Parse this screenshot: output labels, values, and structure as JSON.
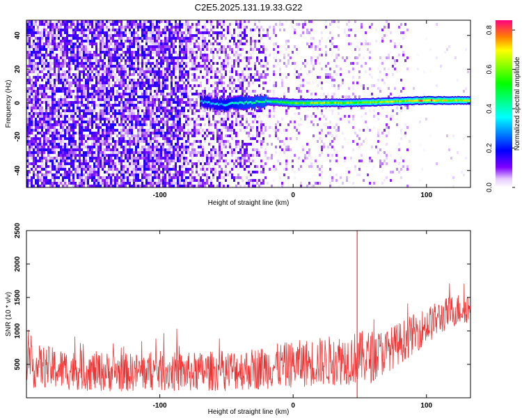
{
  "title": "C2E5.2025.131.19.33.G22",
  "chart_data": [
    {
      "type": "heatmap",
      "title": "",
      "xlabel": "Height of straight line (km)",
      "ylabel": "Frequency (Hz)",
      "xlim": [
        -200,
        133
      ],
      "ylim": [
        -50,
        49
      ],
      "xticks": [
        -100,
        0,
        100
      ],
      "yticks": [
        -40,
        -20,
        0,
        20,
        40
      ],
      "colorbar": {
        "label": "Normalized spectral amplitude",
        "range": [
          0,
          0.85
        ],
        "ticks": [
          0.0,
          0.2,
          0.4,
          0.6,
          0.8
        ],
        "colormap": "rainbow (white-violet-blue-cyan-green-yellow-red)"
      },
      "ridge": {
        "description": "dominant frequency line",
        "points": [
          {
            "x": -70,
            "y": 1,
            "amplitude": 0.3
          },
          {
            "x": -55,
            "y": -1,
            "amplitude": 0.32
          },
          {
            "x": -40,
            "y": 0,
            "amplitude": 0.4
          },
          {
            "x": -20,
            "y": 1,
            "amplitude": 0.45
          },
          {
            "x": 0,
            "y": 0,
            "amplitude": 0.55
          },
          {
            "x": 20,
            "y": 0,
            "amplitude": 0.6
          },
          {
            "x": 40,
            "y": 0,
            "amplitude": 0.6
          },
          {
            "x": 60,
            "y": 0.5,
            "amplitude": 0.62
          },
          {
            "x": 80,
            "y": 1,
            "amplitude": 0.62
          },
          {
            "x": 100,
            "y": 1.5,
            "amplitude": 0.75
          },
          {
            "x": 120,
            "y": 1.5,
            "amplitude": 0.65
          }
        ]
      }
    },
    {
      "type": "line",
      "title": "",
      "xlabel": "Height of straight line (km)",
      "ylabel": "SNR (10 * v/v)",
      "xlim": [
        -200,
        133
      ],
      "ylim": [
        0,
        2500
      ],
      "xticks": [
        -100,
        0,
        100
      ],
      "yticks": [
        500,
        1000,
        1500,
        2000,
        2500
      ],
      "color": "#ee3333",
      "series": [
        {
          "x": [
            -200,
            -190,
            -180,
            -170,
            -160,
            -150,
            -140,
            -130,
            -120,
            -110,
            -100,
            -90,
            -80,
            -70,
            -60,
            -50,
            -40,
            -30,
            -20,
            -10,
            0,
            10,
            20,
            30,
            40,
            50,
            60,
            70,
            80,
            90,
            100,
            110,
            120,
            130
          ],
          "y": [
            450,
            470,
            440,
            420,
            410,
            400,
            390,
            380,
            380,
            390,
            400,
            390,
            380,
            390,
            400,
            410,
            420,
            430,
            460,
            480,
            500,
            520,
            540,
            560,
            580,
            600,
            620,
            700,
            820,
            950,
            1080,
            1200,
            1300,
            1350
          ],
          "spread": [
            320,
            320,
            320,
            310,
            300,
            300,
            300,
            290,
            290,
            290,
            300,
            300,
            300,
            300,
            300,
            310,
            310,
            320,
            330,
            340,
            350,
            360,
            370,
            380,
            390,
            400,
            400,
            330,
            320,
            300,
            280,
            260,
            250,
            240
          ]
        }
      ],
      "annotations": [
        {
          "x": 48,
          "y": 2500,
          "type": "spike"
        }
      ]
    }
  ]
}
